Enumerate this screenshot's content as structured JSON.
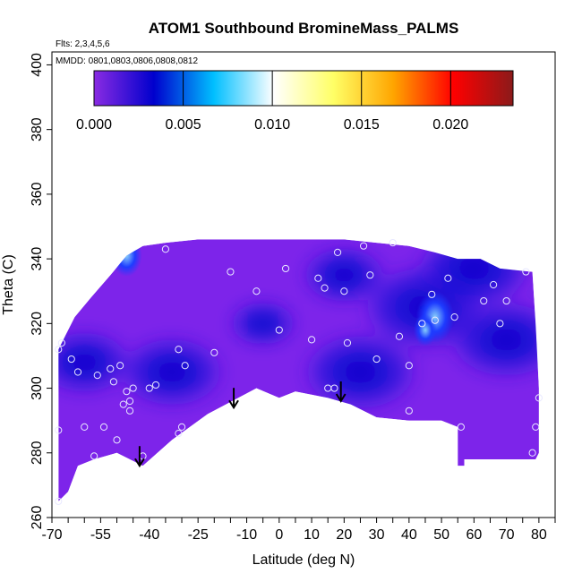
{
  "chart_data": {
    "type": "heatmap",
    "title": "ATOM1 Southbound BromineMass_PALMS",
    "annotations": [
      "Flts: 2,3,4,5,6",
      "MMDD: 0801,0803,0806,0808,0812"
    ],
    "xlabel": "Latitude (deg N)",
    "ylabel": "Theta (C)",
    "xlim": [
      -70,
      85
    ],
    "ylim": [
      260,
      404
    ],
    "x_ticks": [
      -70,
      -55,
      -40,
      -25,
      -10,
      0,
      10,
      20,
      30,
      40,
      50,
      60,
      70,
      80
    ],
    "x_tick_labels": [
      "-70",
      "-55",
      "-40",
      "-25",
      "-10",
      "0",
      "10",
      "20",
      "30",
      "40",
      "50",
      "60",
      "70",
      "80"
    ],
    "y_ticks": [
      260,
      280,
      300,
      320,
      340,
      360,
      380,
      400
    ],
    "y_tick_labels": [
      "260",
      "280",
      "300",
      "320",
      "340",
      "360",
      "380",
      "400"
    ],
    "colorbar": {
      "range": [
        0.0,
        0.0235
      ],
      "ticks": [
        0.0,
        0.005,
        0.01,
        0.015,
        0.02
      ],
      "tick_labels": [
        "0.000",
        "0.005",
        "0.010",
        "0.015",
        "0.020"
      ],
      "colors": [
        "#8a2be2",
        "#0000cd",
        "#00bfff",
        "#ffffff",
        "#ffff66",
        "#ffa500",
        "#ff0000",
        "#8b1a1a"
      ]
    },
    "data_outline": [
      [
        -68,
        265
      ],
      [
        -65,
        268
      ],
      [
        -62,
        276
      ],
      [
        -57,
        278
      ],
      [
        -50,
        280
      ],
      [
        -42,
        276
      ],
      [
        -33,
        284
      ],
      [
        -22,
        292
      ],
      [
        -7,
        300
      ],
      [
        0,
        297
      ],
      [
        5,
        299
      ],
      [
        15,
        297
      ],
      [
        22,
        295
      ],
      [
        30,
        291
      ],
      [
        40,
        290
      ],
      [
        50,
        290
      ],
      [
        55,
        288
      ],
      [
        55,
        276
      ],
      [
        57,
        276
      ],
      [
        57,
        278
      ],
      [
        70,
        278
      ],
      [
        79,
        278
      ],
      [
        80,
        280
      ],
      [
        80,
        300
      ],
      [
        79,
        320
      ],
      [
        78,
        336
      ],
      [
        68,
        337
      ],
      [
        62,
        340
      ],
      [
        55,
        340
      ],
      [
        48,
        342
      ],
      [
        40,
        344
      ],
      [
        30,
        345
      ],
      [
        20,
        346
      ],
      [
        10,
        346
      ],
      [
        -10,
        346
      ],
      [
        -25,
        346
      ],
      [
        -35,
        345
      ],
      [
        -42,
        344
      ],
      [
        -47,
        341
      ],
      [
        -52,
        335
      ],
      [
        -58,
        328
      ],
      [
        -63,
        322
      ],
      [
        -66,
        316
      ],
      [
        -68,
        312
      ]
    ],
    "high_spots": [
      {
        "lat": -47,
        "theta": 341,
        "value": 0.006
      },
      {
        "lat": 48,
        "theta": 322,
        "value": 0.008
      },
      {
        "lat": 45,
        "theta": 318,
        "value": 0.004
      }
    ],
    "dark_zones": [
      {
        "lat": -33,
        "theta": 305,
        "value": 0.003
      },
      {
        "lat": 25,
        "theta": 305,
        "value": 0.0035
      },
      {
        "lat": 45,
        "theta": 325,
        "value": 0.004
      },
      {
        "lat": 70,
        "theta": 315,
        "value": 0.0035
      },
      {
        "lat": 60,
        "theta": 337,
        "value": 0.0035
      },
      {
        "lat": 20,
        "theta": 335,
        "value": 0.002
      },
      {
        "lat": -5,
        "theta": 320,
        "value": 0.0012
      },
      {
        "lat": -60,
        "theta": 308,
        "value": 0.0025
      }
    ],
    "arrows": [
      {
        "lat": -43,
        "theta": 276
      },
      {
        "lat": -14,
        "theta": 294
      },
      {
        "lat": 19,
        "theta": 296
      }
    ],
    "observation_points": [
      [
        -68,
        265
      ],
      [
        -68,
        287
      ],
      [
        -68,
        312
      ],
      [
        -67,
        314
      ],
      [
        -64,
        309
      ],
      [
        -62,
        305
      ],
      [
        -60,
        288
      ],
      [
        -57,
        279
      ],
      [
        -56,
        304
      ],
      [
        -54,
        288
      ],
      [
        -52,
        306
      ],
      [
        -51,
        302
      ],
      [
        -50,
        284
      ],
      [
        -49,
        307
      ],
      [
        -48,
        295
      ],
      [
        -47,
        299
      ],
      [
        -46,
        296
      ],
      [
        -46,
        293
      ],
      [
        -45,
        300
      ],
      [
        -42,
        279
      ],
      [
        -40,
        300
      ],
      [
        -38,
        301
      ],
      [
        -35,
        343
      ],
      [
        -31,
        312
      ],
      [
        -31,
        286
      ],
      [
        -30,
        288
      ],
      [
        -29,
        307
      ],
      [
        -20,
        311
      ],
      [
        -15,
        336
      ],
      [
        -7,
        330
      ],
      [
        0,
        318
      ],
      [
        2,
        337
      ],
      [
        10,
        315
      ],
      [
        12,
        334
      ],
      [
        14,
        331
      ],
      [
        15,
        300
      ],
      [
        17,
        300
      ],
      [
        18,
        342
      ],
      [
        20,
        330
      ],
      [
        21,
        314
      ],
      [
        26,
        344
      ],
      [
        28,
        335
      ],
      [
        30,
        309
      ],
      [
        35,
        345
      ],
      [
        37,
        316
      ],
      [
        40,
        307
      ],
      [
        40,
        293
      ],
      [
        44,
        320
      ],
      [
        47,
        329
      ],
      [
        48,
        321
      ],
      [
        52,
        334
      ],
      [
        54,
        322
      ],
      [
        56,
        288
      ],
      [
        63,
        327
      ],
      [
        66,
        332
      ],
      [
        68,
        320
      ],
      [
        70,
        327
      ],
      [
        76,
        336
      ],
      [
        78,
        280
      ],
      [
        79,
        288
      ],
      [
        80,
        297
      ]
    ]
  }
}
